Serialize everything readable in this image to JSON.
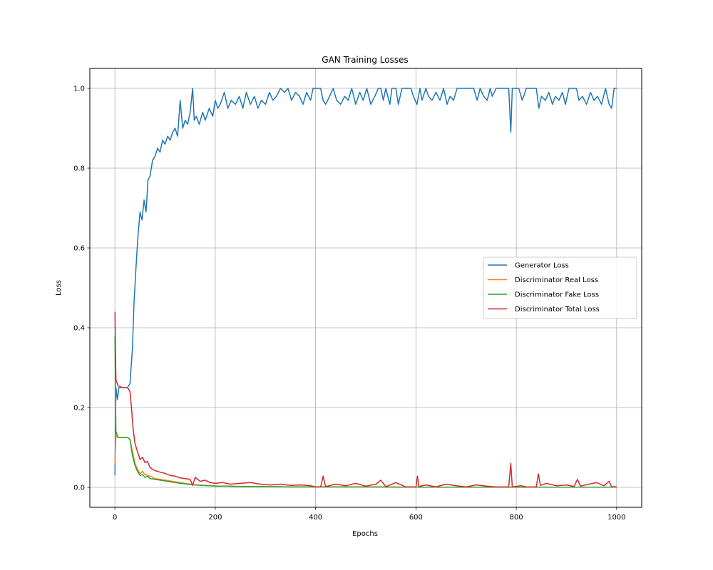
{
  "chart_data": {
    "type": "line",
    "title": "GAN Training Losses",
    "xlabel": "Epochs",
    "ylabel": "Loss",
    "xlim": [
      -50,
      1050
    ],
    "ylim": [
      -0.05,
      1.05
    ],
    "xticks": [
      0,
      200,
      400,
      600,
      800,
      1000
    ],
    "yticks": [
      0.0,
      0.2,
      0.4,
      0.6,
      0.8,
      1.0
    ],
    "xtick_labels": [
      "0",
      "200",
      "400",
      "600",
      "800",
      "1000"
    ],
    "ytick_labels": [
      "0.0",
      "0.2",
      "0.4",
      "0.6",
      "0.8",
      "1.0"
    ],
    "grid": true,
    "legend_position": "center-right",
    "series": [
      {
        "name": "Generator Loss",
        "color": "#1f77b4",
        "points": [
          [
            0,
            0.03
          ],
          [
            2,
            0.25
          ],
          [
            5,
            0.22
          ],
          [
            8,
            0.25
          ],
          [
            15,
            0.25
          ],
          [
            25,
            0.25
          ],
          [
            30,
            0.26
          ],
          [
            35,
            0.35
          ],
          [
            38,
            0.46
          ],
          [
            42,
            0.55
          ],
          [
            46,
            0.63
          ],
          [
            50,
            0.69
          ],
          [
            54,
            0.67
          ],
          [
            58,
            0.72
          ],
          [
            62,
            0.69
          ],
          [
            66,
            0.77
          ],
          [
            70,
            0.78
          ],
          [
            75,
            0.82
          ],
          [
            80,
            0.83
          ],
          [
            85,
            0.85
          ],
          [
            90,
            0.84
          ],
          [
            95,
            0.87
          ],
          [
            100,
            0.86
          ],
          [
            105,
            0.88
          ],
          [
            110,
            0.87
          ],
          [
            115,
            0.89
          ],
          [
            120,
            0.9
          ],
          [
            125,
            0.88
          ],
          [
            130,
            0.97
          ],
          [
            135,
            0.9
          ],
          [
            140,
            0.92
          ],
          [
            145,
            0.91
          ],
          [
            150,
            0.94
          ],
          [
            155,
            1.0
          ],
          [
            158,
            0.92
          ],
          [
            162,
            0.93
          ],
          [
            168,
            0.91
          ],
          [
            175,
            0.94
          ],
          [
            180,
            0.92
          ],
          [
            188,
            0.95
          ],
          [
            195,
            0.93
          ],
          [
            200,
            0.97
          ],
          [
            205,
            0.95
          ],
          [
            210,
            0.96
          ],
          [
            218,
            0.99
          ],
          [
            225,
            0.95
          ],
          [
            232,
            0.97
          ],
          [
            240,
            0.96
          ],
          [
            248,
            0.98
          ],
          [
            255,
            0.95
          ],
          [
            262,
            0.99
          ],
          [
            270,
            0.96
          ],
          [
            278,
            0.98
          ],
          [
            285,
            0.95
          ],
          [
            292,
            0.97
          ],
          [
            300,
            0.96
          ],
          [
            308,
            0.99
          ],
          [
            315,
            0.97
          ],
          [
            322,
            0.98
          ],
          [
            330,
            1.0
          ],
          [
            338,
            0.99
          ],
          [
            345,
            1.0
          ],
          [
            352,
            0.97
          ],
          [
            360,
            0.99
          ],
          [
            368,
            0.98
          ],
          [
            375,
            0.96
          ],
          [
            382,
            0.99
          ],
          [
            390,
            0.97
          ],
          [
            395,
            1.0
          ],
          [
            400,
            1.0
          ],
          [
            410,
            1.0
          ],
          [
            415,
            0.97
          ],
          [
            420,
            0.96
          ],
          [
            428,
            0.98
          ],
          [
            435,
            1.0
          ],
          [
            442,
            0.97
          ],
          [
            450,
            0.96
          ],
          [
            458,
            0.98
          ],
          [
            465,
            0.97
          ],
          [
            472,
            1.0
          ],
          [
            480,
            0.96
          ],
          [
            488,
            0.99
          ],
          [
            495,
            0.97
          ],
          [
            502,
            1.0
          ],
          [
            510,
            0.96
          ],
          [
            518,
            0.98
          ],
          [
            525,
            1.0
          ],
          [
            530,
            1.0
          ],
          [
            535,
            0.97
          ],
          [
            540,
            1.0
          ],
          [
            548,
            0.96
          ],
          [
            552,
            1.0
          ],
          [
            560,
            1.0
          ],
          [
            565,
            0.96
          ],
          [
            572,
            1.0
          ],
          [
            590,
            1.0
          ],
          [
            595,
            0.98
          ],
          [
            602,
            0.96
          ],
          [
            608,
            1.0
          ],
          [
            612,
            0.97
          ],
          [
            620,
            1.0
          ],
          [
            625,
            0.98
          ],
          [
            632,
            0.97
          ],
          [
            640,
            0.99
          ],
          [
            648,
            0.97
          ],
          [
            655,
            1.0
          ],
          [
            662,
            0.96
          ],
          [
            668,
            0.98
          ],
          [
            675,
            0.97
          ],
          [
            682,
            1.0
          ],
          [
            700,
            1.0
          ],
          [
            715,
            1.0
          ],
          [
            722,
            0.97
          ],
          [
            728,
            1.0
          ],
          [
            735,
            0.98
          ],
          [
            742,
            0.97
          ],
          [
            748,
            1.0
          ],
          [
            752,
            0.98
          ],
          [
            760,
            1.0
          ],
          [
            785,
            1.0
          ],
          [
            789,
            0.89
          ],
          [
            792,
            1.0
          ],
          [
            805,
            1.0
          ],
          [
            812,
            0.97
          ],
          [
            820,
            1.0
          ],
          [
            840,
            1.0
          ],
          [
            845,
            0.95
          ],
          [
            850,
            0.98
          ],
          [
            858,
            0.97
          ],
          [
            865,
            0.99
          ],
          [
            872,
            0.96
          ],
          [
            878,
            0.98
          ],
          [
            885,
            0.97
          ],
          [
            892,
            0.99
          ],
          [
            898,
            0.96
          ],
          [
            905,
            1.0
          ],
          [
            920,
            1.0
          ],
          [
            925,
            0.97
          ],
          [
            932,
            0.98
          ],
          [
            940,
            0.96
          ],
          [
            948,
            0.99
          ],
          [
            955,
            0.97
          ],
          [
            962,
            0.98
          ],
          [
            970,
            0.96
          ],
          [
            978,
            1.0
          ],
          [
            985,
            0.96
          ],
          [
            990,
            0.95
          ],
          [
            995,
            1.0
          ],
          [
            1000,
            1.0
          ]
        ]
      },
      {
        "name": "Discriminator Real Loss",
        "color": "#ff7f0e",
        "points": [
          [
            0,
            0.06
          ],
          [
            2,
            0.13
          ],
          [
            6,
            0.125
          ],
          [
            15,
            0.125
          ],
          [
            25,
            0.125
          ],
          [
            30,
            0.12
          ],
          [
            35,
            0.09
          ],
          [
            40,
            0.06
          ],
          [
            45,
            0.045
          ],
          [
            50,
            0.035
          ],
          [
            55,
            0.04
          ],
          [
            60,
            0.032
          ],
          [
            65,
            0.03
          ],
          [
            70,
            0.028
          ],
          [
            80,
            0.022
          ],
          [
            90,
            0.02
          ],
          [
            100,
            0.018
          ],
          [
            110,
            0.016
          ],
          [
            120,
            0.014
          ],
          [
            130,
            0.012
          ],
          [
            140,
            0.01
          ],
          [
            150,
            0.008
          ],
          [
            160,
            0.006
          ],
          [
            175,
            0.005
          ],
          [
            190,
            0.004
          ],
          [
            205,
            0.003
          ],
          [
            225,
            0.003
          ],
          [
            250,
            0.002
          ],
          [
            300,
            0.002
          ],
          [
            350,
            0.001
          ],
          [
            400,
            0.001
          ],
          [
            500,
            0.001
          ],
          [
            600,
            0.0005
          ],
          [
            700,
            0.0005
          ],
          [
            800,
            0.0005
          ],
          [
            900,
            0.0005
          ],
          [
            1000,
            0.0005
          ]
        ]
      },
      {
        "name": "Discriminator Fake Loss",
        "color": "#2ca02c",
        "points": [
          [
            0,
            0.38
          ],
          [
            2,
            0.14
          ],
          [
            6,
            0.125
          ],
          [
            15,
            0.125
          ],
          [
            25,
            0.125
          ],
          [
            30,
            0.12
          ],
          [
            35,
            0.08
          ],
          [
            40,
            0.055
          ],
          [
            45,
            0.04
          ],
          [
            50,
            0.03
          ],
          [
            55,
            0.032
          ],
          [
            60,
            0.025
          ],
          [
            65,
            0.028
          ],
          [
            70,
            0.022
          ],
          [
            80,
            0.02
          ],
          [
            90,
            0.018
          ],
          [
            100,
            0.016
          ],
          [
            110,
            0.014
          ],
          [
            120,
            0.012
          ],
          [
            130,
            0.01
          ],
          [
            140,
            0.009
          ],
          [
            150,
            0.007
          ],
          [
            160,
            0.006
          ],
          [
            175,
            0.005
          ],
          [
            190,
            0.004
          ],
          [
            205,
            0.003
          ],
          [
            225,
            0.003
          ],
          [
            250,
            0.002
          ],
          [
            300,
            0.002
          ],
          [
            350,
            0.001
          ],
          [
            400,
            0.001
          ],
          [
            500,
            0.001
          ],
          [
            600,
            0.0005
          ],
          [
            700,
            0.0005
          ],
          [
            800,
            0.0005
          ],
          [
            900,
            0.0005
          ],
          [
            1000,
            0.0005
          ]
        ]
      },
      {
        "name": "Discriminator Total Loss",
        "color": "#d62728",
        "points": [
          [
            0,
            0.44
          ],
          [
            2,
            0.27
          ],
          [
            6,
            0.255
          ],
          [
            15,
            0.25
          ],
          [
            25,
            0.25
          ],
          [
            30,
            0.24
          ],
          [
            33,
            0.2
          ],
          [
            36,
            0.15
          ],
          [
            40,
            0.11
          ],
          [
            45,
            0.09
          ],
          [
            50,
            0.07
          ],
          [
            55,
            0.075
          ],
          [
            60,
            0.062
          ],
          [
            65,
            0.065
          ],
          [
            70,
            0.05
          ],
          [
            75,
            0.045
          ],
          [
            80,
            0.042
          ],
          [
            90,
            0.038
          ],
          [
            100,
            0.035
          ],
          [
            110,
            0.03
          ],
          [
            120,
            0.028
          ],
          [
            130,
            0.024
          ],
          [
            140,
            0.022
          ],
          [
            150,
            0.02
          ],
          [
            155,
            0.005
          ],
          [
            160,
            0.025
          ],
          [
            170,
            0.015
          ],
          [
            180,
            0.018
          ],
          [
            190,
            0.012
          ],
          [
            200,
            0.01
          ],
          [
            215,
            0.012
          ],
          [
            230,
            0.008
          ],
          [
            250,
            0.01
          ],
          [
            270,
            0.012
          ],
          [
            290,
            0.008
          ],
          [
            310,
            0.006
          ],
          [
            330,
            0.008
          ],
          [
            350,
            0.005
          ],
          [
            370,
            0.006
          ],
          [
            390,
            0.004
          ],
          [
            400,
            0.001
          ],
          [
            410,
            0.001
          ],
          [
            415,
            0.028
          ],
          [
            420,
            0.002
          ],
          [
            440,
            0.008
          ],
          [
            460,
            0.004
          ],
          [
            480,
            0.01
          ],
          [
            500,
            0.003
          ],
          [
            520,
            0.008
          ],
          [
            530,
            0.018
          ],
          [
            540,
            0.002
          ],
          [
            560,
            0.012
          ],
          [
            580,
            0.001
          ],
          [
            600,
            0.001
          ],
          [
            603,
            0.028
          ],
          [
            606,
            0.002
          ],
          [
            620,
            0.006
          ],
          [
            640,
            0.001
          ],
          [
            660,
            0.008
          ],
          [
            680,
            0.004
          ],
          [
            700,
            0.001
          ],
          [
            720,
            0.006
          ],
          [
            740,
            0.003
          ],
          [
            760,
            0.001
          ],
          [
            785,
            0.001
          ],
          [
            789,
            0.06
          ],
          [
            792,
            0.001
          ],
          [
            810,
            0.004
          ],
          [
            820,
            0.001
          ],
          [
            840,
            0.001
          ],
          [
            844,
            0.034
          ],
          [
            848,
            0.005
          ],
          [
            860,
            0.01
          ],
          [
            880,
            0.004
          ],
          [
            900,
            0.006
          ],
          [
            915,
            0.002
          ],
          [
            922,
            0.02
          ],
          [
            928,
            0.003
          ],
          [
            945,
            0.008
          ],
          [
            960,
            0.012
          ],
          [
            975,
            0.004
          ],
          [
            985,
            0.015
          ],
          [
            990,
            0.002
          ],
          [
            1000,
            0.001
          ]
        ]
      }
    ]
  }
}
